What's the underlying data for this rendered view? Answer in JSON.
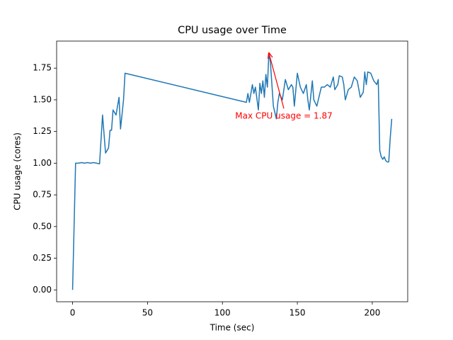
{
  "chart_data": {
    "type": "line",
    "title": "CPU usage over Time",
    "x_label": "Time (sec)",
    "y_label": "CPU usage (cores)",
    "x": [
      0,
      2,
      4,
      6,
      8,
      10,
      12,
      14,
      16,
      18,
      20,
      22,
      24,
      25,
      26,
      27,
      29,
      31,
      32,
      34,
      35,
      116,
      117,
      118,
      120,
      121,
      122,
      124,
      125,
      126,
      127,
      128,
      129,
      130,
      131,
      132,
      134,
      135,
      136,
      137,
      138,
      140,
      142,
      144,
      146,
      147,
      148,
      150,
      152,
      154,
      156,
      157,
      158,
      160,
      161,
      163,
      165,
      166,
      168,
      170,
      172,
      174,
      175,
      177,
      178,
      180,
      181,
      182,
      184,
      186,
      188,
      190,
      192,
      194,
      195,
      196,
      197,
      199,
      201,
      203,
      204,
      205,
      206,
      207,
      208,
      209,
      210,
      211,
      212,
      213
    ],
    "series": [
      {
        "name": "CPU usage",
        "color": "#1f77b4",
        "values": [
          0,
          1.0,
          1.0,
          1.005,
          1.0,
          1.005,
          1.0,
          1.005,
          1.0,
          0.995,
          1.38,
          1.08,
          1.12,
          1.26,
          1.26,
          1.42,
          1.38,
          1.52,
          1.27,
          1.5,
          1.71,
          1.48,
          1.55,
          1.48,
          1.62,
          1.55,
          1.6,
          1.42,
          1.63,
          1.55,
          1.65,
          1.52,
          1.7,
          1.6,
          1.87,
          1.8,
          1.45,
          1.4,
          1.35,
          1.48,
          1.55,
          1.5,
          1.66,
          1.58,
          1.62,
          1.6,
          1.45,
          1.71,
          1.6,
          1.55,
          1.62,
          1.5,
          1.42,
          1.65,
          1.5,
          1.45,
          1.55,
          1.6,
          1.6,
          1.62,
          1.6,
          1.68,
          1.58,
          1.62,
          1.69,
          1.68,
          1.62,
          1.5,
          1.58,
          1.6,
          1.68,
          1.65,
          1.52,
          1.56,
          1.72,
          1.62,
          1.72,
          1.71,
          1.65,
          1.62,
          1.66,
          1.1,
          1.05,
          1.03,
          1.05,
          1.02,
          1.01,
          1.01,
          1.2,
          1.35
        ]
      }
    ],
    "xlim": [
      -10.65,
      223.65
    ],
    "xticks": [
      0,
      50,
      100,
      150,
      200
    ],
    "ylim": [
      -0.0935,
      1.9635
    ],
    "yticks": [
      {
        "value": 0,
        "label": "0.00"
      },
      {
        "value": 0.25,
        "label": "0.25"
      },
      {
        "value": 0.5,
        "label": "0.50"
      },
      {
        "value": 0.75,
        "label": "0.75"
      },
      {
        "value": 1,
        "label": "1.00"
      },
      {
        "value": 1.25,
        "label": "1.25"
      },
      {
        "value": 1.5,
        "label": "1.50"
      },
      {
        "value": 1.75,
        "label": "1.75"
      }
    ],
    "grid": false,
    "annotations": [
      {
        "text": "Max CPU usage = 1.87",
        "xy": [
          131,
          1.87
        ],
        "xytext": [
          141,
          1.37
        ],
        "color": "red"
      }
    ]
  }
}
